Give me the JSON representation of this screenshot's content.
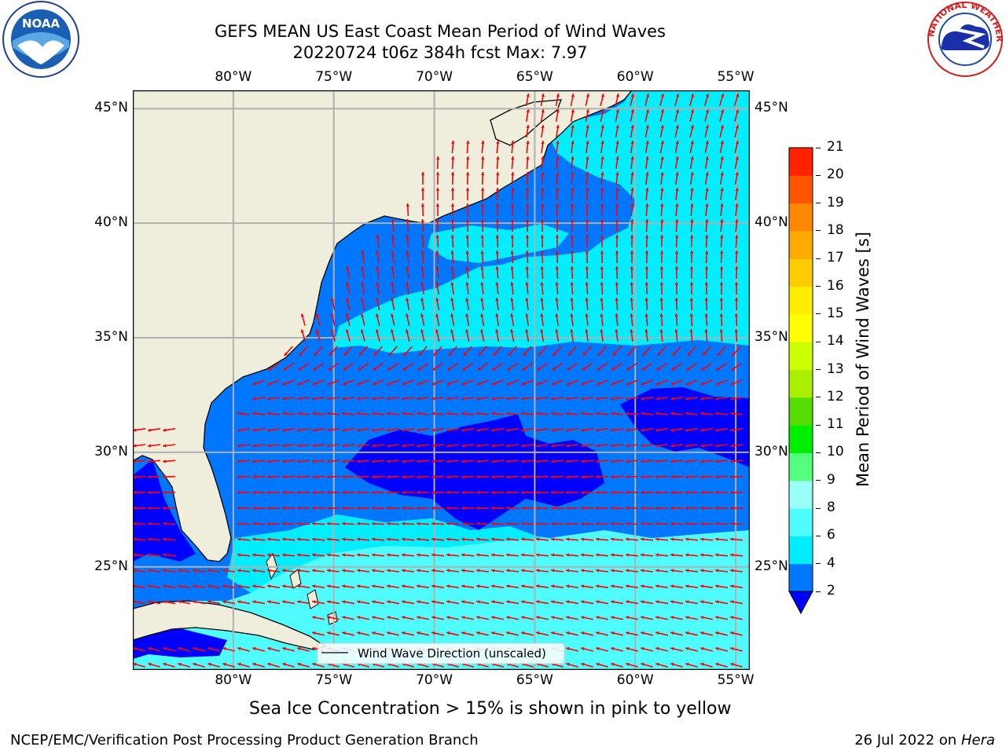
{
  "title": {
    "line1": "GEFS MEAN US East Coast Mean Period of Wind Waves",
    "line2": "20220724 t06z 384h fcst   Max: 7.97"
  },
  "logos": {
    "left": {
      "icon": "noaa-logo-icon",
      "text": "NOAA"
    },
    "right": {
      "icon": "nws-logo-icon",
      "text": "NATIONAL WEATHER SERVICE"
    }
  },
  "map": {
    "lon_ticks": [
      "80°W",
      "75°W",
      "70°W",
      "65°W",
      "60°W",
      "55°W"
    ],
    "lon_values": [
      -80,
      -75,
      -70,
      -65,
      -60,
      -55
    ],
    "lat_ticks": [
      "45°N",
      "40°N",
      "35°N",
      "30°N",
      "25°N"
    ],
    "lat_values": [
      45,
      40,
      35,
      30,
      25
    ],
    "extent": {
      "lon_min": -85,
      "lon_max": -54.3,
      "lat_min": 20.5,
      "lat_max": 45.8
    },
    "land_color": "#efeedd",
    "grid_color": "#b0b0b0",
    "arrow_color": "#ff0000",
    "legend_label": "Wind Wave Direction (unscaled)"
  },
  "colorbar": {
    "title": "Mean Period of Wind Waves [s]",
    "labels": [
      "21",
      "20",
      "19",
      "18",
      "17",
      "16",
      "15",
      "14",
      "13",
      "12",
      "11",
      "10",
      "9",
      "8",
      "6",
      "4",
      "2"
    ],
    "levels": [
      2,
      4,
      6,
      8,
      9,
      10,
      11,
      12,
      13,
      14,
      15,
      16,
      17,
      18,
      19,
      20,
      21
    ],
    "colors": [
      "#0077ff",
      "#00eeff",
      "#4ffcff",
      "#99fff7",
      "#55ff7e",
      "#00ee00",
      "#55dd00",
      "#aaee00",
      "#ccff00",
      "#ffff00",
      "#ffee00",
      "#ffcc00",
      "#ffaa00",
      "#ff8800",
      "#ff5500",
      "#ff2200"
    ],
    "under_color": "#0000ff"
  },
  "note": "Sea Ice Concentration > 15% is shown in pink to yellow",
  "footer": {
    "left": "NCEP/EMC/Verification Post Processing Product Generation Branch",
    "right_date": "26 Jul 2022 on ",
    "right_machine": "Hera"
  }
}
